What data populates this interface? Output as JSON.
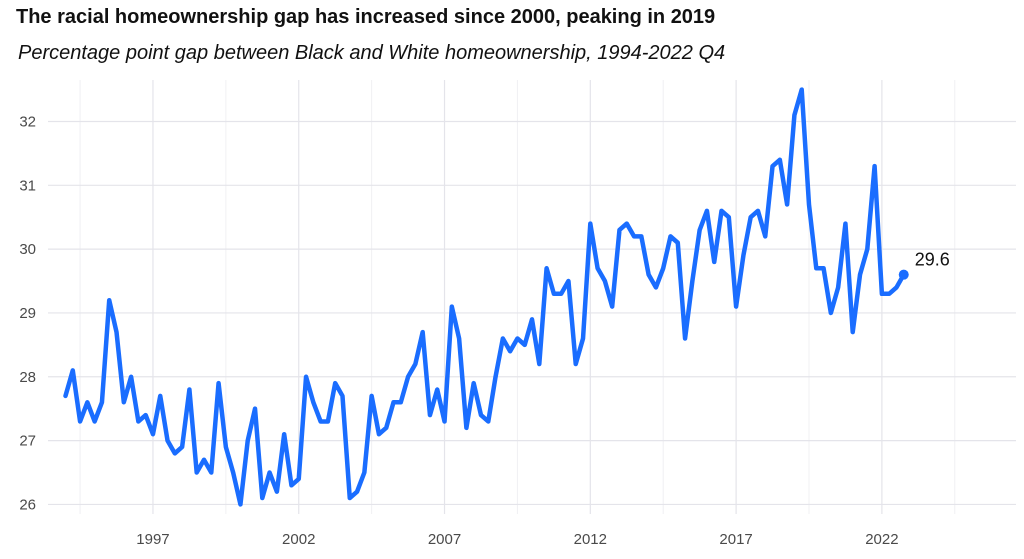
{
  "chart_data": {
    "type": "line",
    "title": "The racial homeownership gap has increased since 2000, peaking in 2019",
    "subtitle": "Percentage point gap between Black and White homeownership, 1994-2022 Q4",
    "xlabel": "",
    "ylabel": "",
    "xlim": [
      1993.4,
      2026.6
    ],
    "ylim": [
      25.85,
      32.65
    ],
    "x_ticks": [
      1997,
      2002,
      2007,
      2012,
      2017,
      2022
    ],
    "y_ticks": [
      26,
      27,
      28,
      29,
      30,
      31,
      32
    ],
    "grid": true,
    "legend": "none",
    "series_color": "#1a6dff",
    "end_label": "29.6",
    "series": [
      {
        "x_start": 1994.0,
        "x_step": 0.25,
        "values": [
          27.7,
          28.1,
          27.3,
          27.6,
          27.3,
          27.6,
          29.2,
          28.7,
          27.6,
          28.0,
          27.3,
          27.4,
          27.1,
          27.7,
          27.0,
          26.8,
          26.9,
          27.8,
          26.5,
          26.7,
          26.5,
          27.9,
          26.9,
          26.5,
          26.0,
          27.0,
          27.5,
          26.1,
          26.5,
          26.2,
          27.1,
          26.3,
          26.4,
          28.0,
          27.6,
          27.3,
          27.3,
          27.9,
          27.7,
          26.1,
          26.2,
          26.5,
          27.7,
          27.1,
          27.2,
          27.6,
          27.6,
          28.0,
          28.2,
          28.7,
          27.4,
          27.8,
          27.3,
          29.1,
          28.6,
          27.2,
          27.9,
          27.4,
          27.3,
          28.0,
          28.6,
          28.4,
          28.6,
          28.5,
          28.9,
          28.2,
          29.7,
          29.3,
          29.3,
          29.5,
          28.2,
          28.6,
          30.4,
          29.7,
          29.5,
          29.1,
          30.3,
          30.4,
          30.2,
          30.2,
          29.6,
          29.4,
          29.7,
          30.2,
          30.1,
          28.6,
          29.5,
          30.3,
          30.6,
          29.8,
          30.6,
          30.5,
          29.1,
          29.9,
          30.5,
          30.6,
          30.2,
          31.3,
          31.4,
          30.7,
          32.1,
          32.5,
          30.7,
          29.7,
          29.7,
          29.0,
          29.4,
          30.4,
          28.7,
          29.6,
          30.0,
          31.3,
          29.3,
          29.3,
          29.4,
          29.6
        ]
      }
    ]
  }
}
